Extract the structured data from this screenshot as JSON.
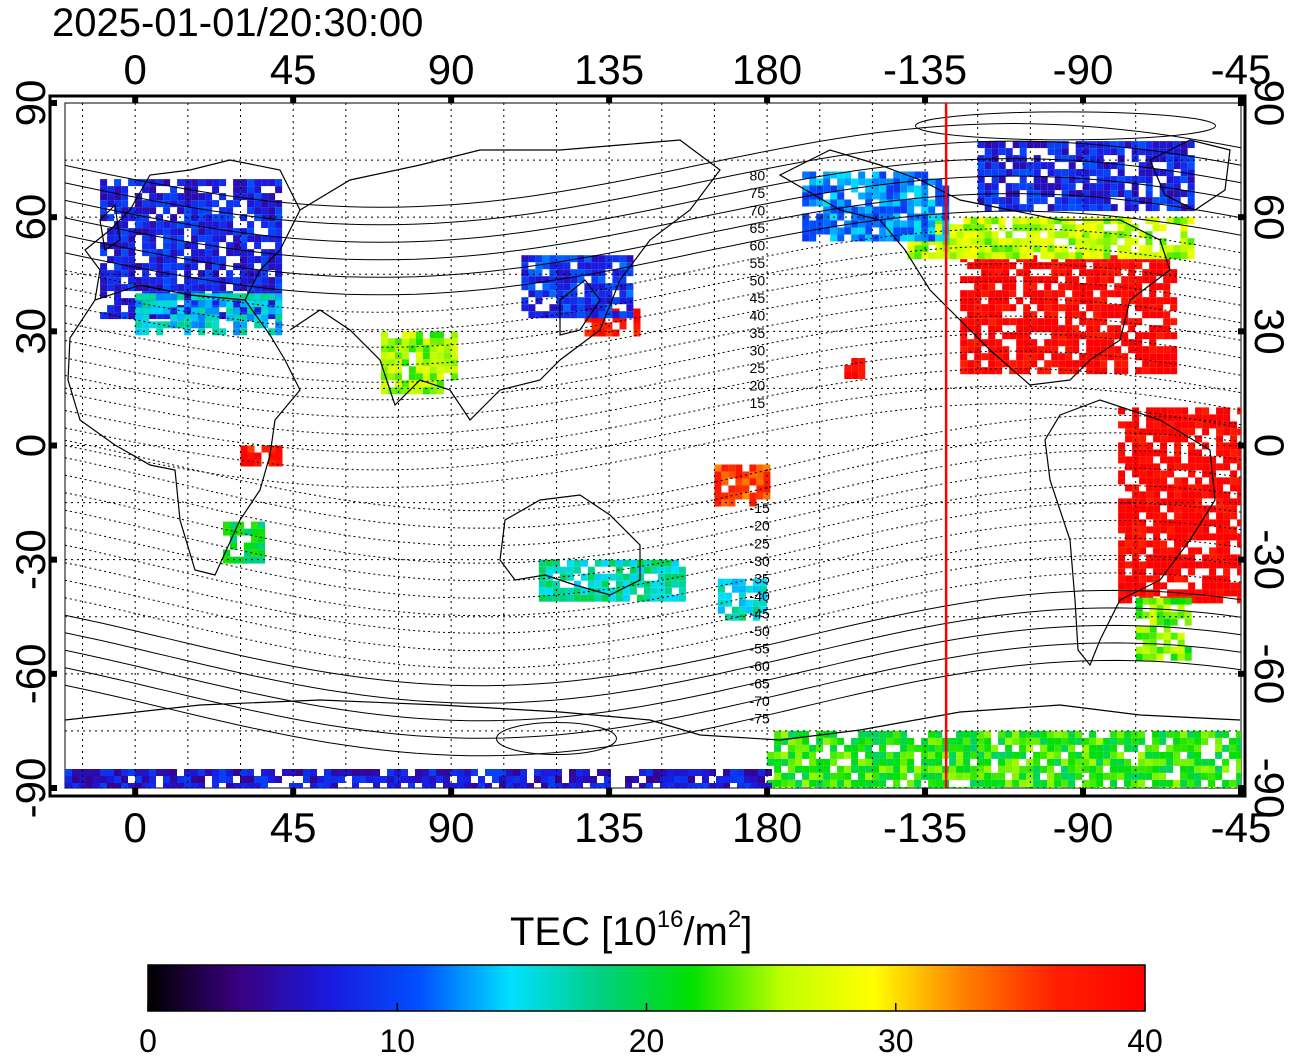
{
  "timestamp": "2025-01-01/20:30:00",
  "map": {
    "projection": "equirectangular",
    "lon_min": -20,
    "lon_max": 315,
    "lat_min": -90,
    "lat_max": 90,
    "top_axis_labels": [
      "0",
      "45",
      "90",
      "135",
      "180",
      "-135",
      "-90",
      "-45"
    ],
    "bottom_axis_labels": [
      "0",
      "45",
      "90",
      "135",
      "180",
      "-135",
      "-90",
      "-45"
    ],
    "left_axis_labels": [
      "90",
      "60",
      "30",
      "0",
      "-30",
      "-60",
      "-90"
    ],
    "right_axis_labels": [
      "90",
      "60",
      "30",
      "0",
      "-30",
      "-60",
      "-90"
    ],
    "grid": true,
    "terminator_longitude": -129,
    "terminator_color": "#ff0000",
    "magnetic_latitude_labels_north": [
      "80",
      "75",
      "70",
      "65",
      "60",
      "55",
      "50",
      "45",
      "40",
      "35",
      "30",
      "25",
      "20",
      "15"
    ],
    "magnetic_latitude_labels_south": [
      "-15",
      "-20",
      "-25",
      "-30",
      "-35",
      "-40",
      "-45",
      "-50",
      "-55",
      "-60",
      "-65",
      "-70",
      "-75"
    ]
  },
  "colorbar": {
    "title_prefix": "TEC  [10",
    "title_sup1": "16",
    "title_mid": "/m",
    "title_sup2": "2",
    "title_suffix": "]",
    "min": 0,
    "max": 40,
    "tick_labels": [
      "0",
      "10",
      "20",
      "30",
      "40"
    ],
    "stops": [
      "#000000",
      "#3a0080",
      "#1a1ae0",
      "#0050ff",
      "#00e0ff",
      "#00d080",
      "#00e000",
      "#c0ff00",
      "#ffff00",
      "#ff8000",
      "#ff2000",
      "#ff0000"
    ]
  },
  "chart_data": {
    "type": "heatmap",
    "title": "2025-01-01/20:30:00",
    "value_label": "TEC [10^16/m^2]",
    "value_range": [
      0,
      40
    ],
    "xlim_deg_east": [
      -20,
      315
    ],
    "ylim_deg": [
      -90,
      90
    ],
    "regions": [
      {
        "name": "North America (sunlit)",
        "lon": [
          -125,
          -65
        ],
        "lat": [
          20,
          50
        ],
        "tec": 40
      },
      {
        "name": "South America",
        "lon": [
          -80,
          -35
        ],
        "lat": [
          -40,
          10
        ],
        "tec": 40
      },
      {
        "name": "Southern South America",
        "lon": [
          -75,
          -60
        ],
        "lat": [
          -55,
          -40
        ],
        "tec": 24
      },
      {
        "name": "Canada",
        "lon": [
          -140,
          -60
        ],
        "lat": [
          50,
          60
        ],
        "tec": 26
      },
      {
        "name": "Arctic Canada",
        "lon": [
          -120,
          -60
        ],
        "lat": [
          62,
          80
        ],
        "tec": 8
      },
      {
        "name": "Alaska",
        "lon": [
          -170,
          -130
        ],
        "lat": [
          55,
          72
        ],
        "tec": 12
      },
      {
        "name": "Europe",
        "lon": [
          -10,
          40
        ],
        "lat": [
          35,
          70
        ],
        "tec": 8
      },
      {
        "name": "Mediterranean",
        "lon": [
          0,
          40
        ],
        "lat": [
          30,
          40
        ],
        "tec": 15
      },
      {
        "name": "Japan",
        "lon": [
          128,
          142
        ],
        "lat": [
          30,
          36
        ],
        "tec": 38
      },
      {
        "name": "East Asia",
        "lon": [
          110,
          140
        ],
        "lat": [
          35,
          50
        ],
        "tec": 9
      },
      {
        "name": "India",
        "lon": [
          70,
          90
        ],
        "lat": [
          15,
          30
        ],
        "tec": 25
      },
      {
        "name": "Hawaii",
        "lon": [
          -158,
          -153
        ],
        "lat": [
          18,
          23
        ],
        "tec": 40
      },
      {
        "name": "East Africa",
        "lon": [
          30,
          40
        ],
        "lat": [
          -5,
          0
        ],
        "tec": 38
      },
      {
        "name": "Southern Africa",
        "lon": [
          25,
          35
        ],
        "lat": [
          -30,
          -20
        ],
        "tec": 20
      },
      {
        "name": "Australia",
        "lon": [
          115,
          155
        ],
        "lat": [
          -40,
          -30
        ],
        "tec": 17
      },
      {
        "name": "New Zealand",
        "lon": [
          166,
          178
        ],
        "lat": [
          -46,
          -35
        ],
        "tec": 16
      },
      {
        "name": "Central Pacific",
        "lon": [
          165,
          180
        ],
        "lat": [
          -15,
          -5
        ],
        "tec": 35
      },
      {
        "name": "Antarctica (sunlit sector)",
        "lon": [
          180,
          315
        ],
        "lat": [
          -90,
          -75
        ],
        "tec": 22
      },
      {
        "name": "Antarctica (dark sector)",
        "lon": [
          -20,
          180
        ],
        "lat": [
          -90,
          -85
        ],
        "tec": 7
      }
    ]
  }
}
